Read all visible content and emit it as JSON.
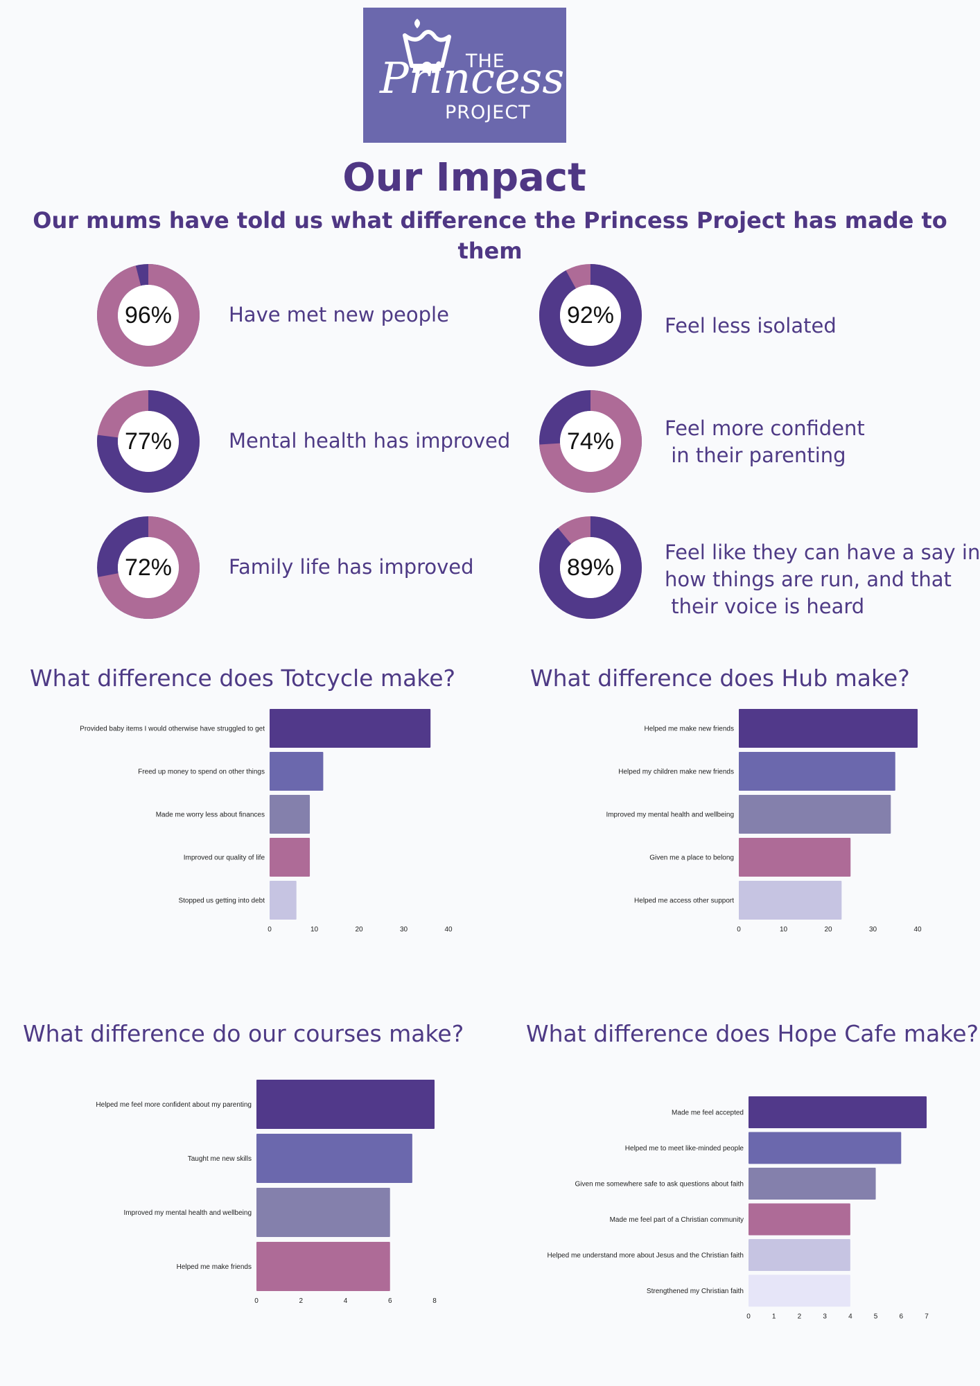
{
  "logo": {
    "the": "THE",
    "princess": "Princess",
    "project": "PROJECT"
  },
  "header": {
    "title": "Our Impact",
    "subtitle": "Our mums have told us what difference the Princess Project has made to them"
  },
  "colors": {
    "accent_purple": "#51398a",
    "accent_pink": "#ae6b97",
    "bar_palette": [
      "#51398a",
      "#6b68ad",
      "#8480ac",
      "#ae6b97",
      "#c6c4e2",
      "#e6e5f8"
    ]
  },
  "stats": [
    {
      "percent": "96%",
      "value": 96,
      "text": "Have met new people",
      "main_color": "#ae6b97",
      "rest_color": "#51398a"
    },
    {
      "percent": "92%",
      "value": 92,
      "text": "Feel less isolated",
      "main_color": "#51398a",
      "rest_color": "#ae6b97"
    },
    {
      "percent": "77%",
      "value": 77,
      "text": "Mental health has improved",
      "main_color": "#51398a",
      "rest_color": "#ae6b97"
    },
    {
      "percent": "74%",
      "value": 74,
      "text": "Feel more confident\n in their parenting",
      "main_color": "#ae6b97",
      "rest_color": "#51398a"
    },
    {
      "percent": "72%",
      "value": 72,
      "text": "Family life has improved",
      "main_color": "#ae6b97",
      "rest_color": "#51398a"
    },
    {
      "percent": "89%",
      "value": 89,
      "text": "Feel like they can have a say in\nhow things are run, and that\n their voice is heard",
      "main_color": "#51398a",
      "rest_color": "#ae6b97"
    }
  ],
  "chart_data": [
    {
      "type": "bar",
      "orientation": "horizontal",
      "title": "What difference does Totcycle make?",
      "categories": [
        "Provided baby items I would otherwise have struggled to get",
        "Freed up money to spend on other things",
        "Made me worry less about finances",
        "Improved our quality of life",
        "Stopped us getting into debt"
      ],
      "values": [
        36,
        12,
        9,
        9,
        6
      ],
      "xlim": [
        0,
        40
      ],
      "xticks": [
        0,
        10,
        20,
        30,
        40
      ]
    },
    {
      "type": "bar",
      "orientation": "horizontal",
      "title": "What difference does Hub make?",
      "categories": [
        "Helped me make new friends",
        "Helped my children make new friends",
        "Improved my mental health and wellbeing",
        "Given me a place to belong",
        "Helped me access other support"
      ],
      "values": [
        40,
        35,
        34,
        25,
        23
      ],
      "xlim": [
        0,
        40
      ],
      "xticks": [
        0,
        10,
        20,
        30,
        40
      ]
    },
    {
      "type": "bar",
      "orientation": "horizontal",
      "title": "What difference do our courses make?",
      "categories": [
        "Helped me feel more confident about my parenting",
        "Taught me new skills",
        "Improved my mental health and wellbeing",
        "Helped me make friends"
      ],
      "values": [
        8,
        7,
        6,
        6
      ],
      "xlim": [
        0,
        8
      ],
      "xticks": [
        0,
        2,
        4,
        6,
        8
      ]
    },
    {
      "type": "bar",
      "orientation": "horizontal",
      "title": "What difference does Hope Cafe make?",
      "categories": [
        "Made me feel accepted",
        "Helped me to meet like-minded people",
        "Given me somewhere safe to ask questions about faith",
        "Made me feel part of a Christian community",
        "Helped me understand more about Jesus and the Christian faith",
        "Strengthened my Christian faith"
      ],
      "values": [
        7,
        6,
        5,
        4,
        4,
        4
      ],
      "xlim": [
        0,
        7
      ],
      "xticks": [
        0,
        1,
        2,
        3,
        4,
        5,
        6,
        7
      ]
    }
  ]
}
